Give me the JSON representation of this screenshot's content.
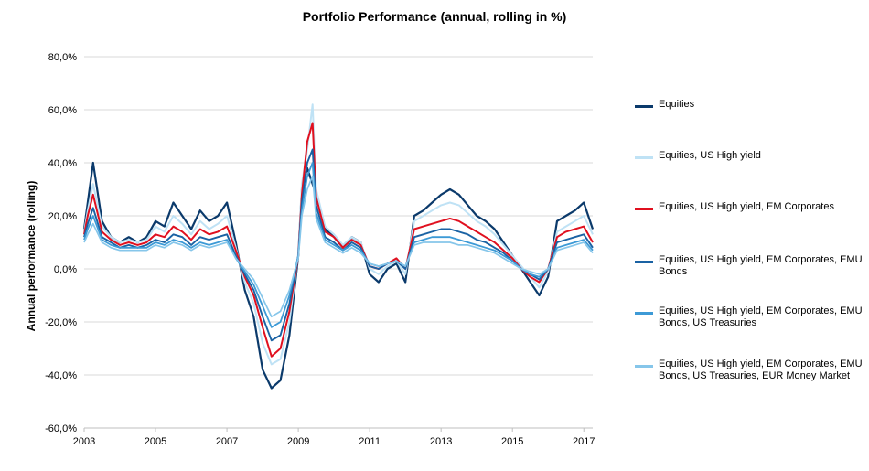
{
  "chart_data": {
    "type": "line",
    "title": "Portfolio Performance (annual, rolling in %)",
    "xlabel": "",
    "ylabel": "Annual performance (rolling)",
    "xlim": [
      2003.0,
      2017.25
    ],
    "ylim": [
      -60,
      80
    ],
    "y_ticks": [
      "80,0%",
      "60,0%",
      "40,0%",
      "20,0%",
      "0,0%",
      "-20,0%",
      "-40,0%",
      "-60,0%"
    ],
    "x_ticks": [
      "2003",
      "2005",
      "2007",
      "2009",
      "2011",
      "2013",
      "2015",
      "2017"
    ],
    "grid": "horizontal",
    "legend_position": "right",
    "x": [
      2003.0,
      2003.1,
      2003.25,
      2003.5,
      2003.75,
      2004.0,
      2004.25,
      2004.5,
      2004.75,
      2005.0,
      2005.25,
      2005.5,
      2005.75,
      2006.0,
      2006.25,
      2006.5,
      2006.75,
      2007.0,
      2007.25,
      2007.5,
      2007.75,
      2008.0,
      2008.25,
      2008.5,
      2008.75,
      2009.0,
      2009.1,
      2009.25,
      2009.4,
      2009.5,
      2009.75,
      2010.0,
      2010.25,
      2010.5,
      2010.75,
      2011.0,
      2011.25,
      2011.5,
      2011.75,
      2012.0,
      2012.25,
      2012.5,
      2012.75,
      2013.0,
      2013.25,
      2013.5,
      2013.75,
      2014.0,
      2014.25,
      2014.5,
      2014.75,
      2015.0,
      2015.25,
      2015.5,
      2015.75,
      2016.0,
      2016.25,
      2016.5,
      2016.75,
      2017.0,
      2017.25
    ],
    "series": [
      {
        "name": "Equities",
        "color": "#0b3a6b",
        "width": 2.2,
        "values": [
          15,
          25,
          40,
          18,
          12,
          10,
          12,
          10,
          12,
          18,
          16,
          25,
          20,
          15,
          22,
          18,
          20,
          25,
          10,
          -8,
          -18,
          -38,
          -45,
          -42,
          -25,
          5,
          30,
          38,
          32,
          28,
          15,
          12,
          8,
          12,
          10,
          -2,
          -5,
          0,
          2,
          -5,
          20,
          22,
          25,
          28,
          30,
          28,
          24,
          20,
          18,
          15,
          10,
          5,
          0,
          -5,
          -10,
          -3,
          18,
          20,
          22,
          25,
          15
        ]
      },
      {
        "name": "Equities, US High yield",
        "color": "#bfe2f5",
        "width": 2.0,
        "values": [
          14,
          22,
          32,
          16,
          12,
          10,
          11,
          10,
          11,
          16,
          14,
          20,
          17,
          13,
          18,
          15,
          17,
          20,
          8,
          -5,
          -13,
          -28,
          -36,
          -34,
          -20,
          6,
          32,
          45,
          62,
          30,
          16,
          13,
          9,
          12,
          10,
          0,
          -2,
          1,
          3,
          -2,
          18,
          20,
          22,
          24,
          25,
          24,
          21,
          18,
          16,
          13,
          9,
          5,
          1,
          -3,
          -7,
          -1,
          14,
          16,
          18,
          20,
          13
        ]
      },
      {
        "name": "Equities, US High yield, EM Corporates",
        "color": "#e0101f",
        "width": 2.0,
        "values": [
          13,
          20,
          28,
          14,
          11,
          9,
          10,
          9,
          10,
          13,
          12,
          16,
          14,
          11,
          15,
          13,
          14,
          16,
          7,
          -3,
          -10,
          -22,
          -33,
          -30,
          -16,
          5,
          28,
          48,
          55,
          27,
          14,
          12,
          8,
          11,
          9,
          1,
          0,
          2,
          4,
          0,
          15,
          16,
          17,
          18,
          19,
          18,
          16,
          14,
          12,
          10,
          7,
          4,
          0,
          -3,
          -5,
          0,
          12,
          14,
          15,
          16,
          10
        ]
      },
      {
        "name": "Equities, US High yield, EM Corporates, EMU Bonds",
        "color": "#1a62a3",
        "width": 1.9,
        "values": [
          12,
          17,
          23,
          12,
          10,
          8,
          9,
          8,
          9,
          11,
          10,
          13,
          12,
          9,
          12,
          11,
          12,
          13,
          5,
          -2,
          -8,
          -18,
          -27,
          -25,
          -13,
          5,
          25,
          40,
          45,
          24,
          12,
          10,
          7,
          10,
          8,
          1,
          0,
          2,
          3,
          0,
          12,
          13,
          14,
          15,
          15,
          14,
          13,
          11,
          10,
          8,
          6,
          3,
          0,
          -2,
          -4,
          0,
          10,
          11,
          12,
          13,
          8
        ]
      },
      {
        "name": "Equities, US High yield, EM Corporates, EMU Bonds, US Treasuries",
        "color": "#3d9ad6",
        "width": 1.8,
        "values": [
          11,
          15,
          20,
          11,
          9,
          8,
          8,
          8,
          8,
          10,
          9,
          11,
          10,
          8,
          10,
          9,
          10,
          11,
          4,
          -1,
          -6,
          -14,
          -22,
          -20,
          -10,
          5,
          22,
          35,
          40,
          21,
          11,
          9,
          7,
          9,
          7,
          2,
          1,
          2,
          3,
          1,
          10,
          11,
          12,
          12,
          12,
          11,
          10,
          9,
          8,
          7,
          5,
          3,
          0,
          -2,
          -3,
          0,
          8,
          9,
          10,
          11,
          7
        ]
      },
      {
        "name": "Equities, US High yield, EM Corporates, EMU Bonds, US Treasuries, EUR Money Market",
        "color": "#86c6ea",
        "width": 1.7,
        "values": [
          10,
          13,
          17,
          10,
          8,
          7,
          7,
          7,
          7,
          9,
          8,
          10,
          9,
          7,
          9,
          8,
          9,
          10,
          4,
          0,
          -4,
          -11,
          -18,
          -16,
          -8,
          4,
          20,
          30,
          35,
          19,
          10,
          8,
          6,
          8,
          6,
          2,
          1,
          2,
          3,
          1,
          9,
          10,
          10,
          10,
          10,
          9,
          9,
          8,
          7,
          6,
          4,
          2,
          0,
          -1,
          -2,
          0,
          7,
          8,
          9,
          10,
          6
        ]
      }
    ]
  }
}
